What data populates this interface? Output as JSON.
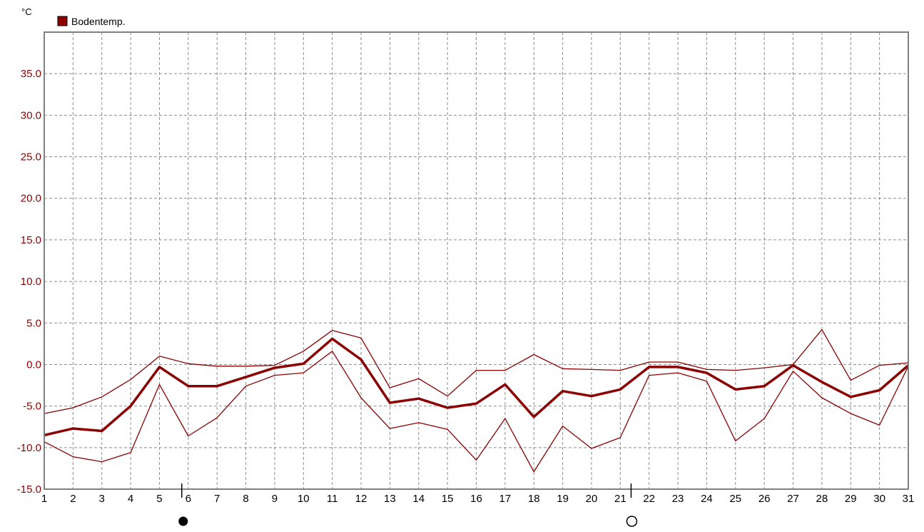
{
  "colors": {
    "series": "#8b0000",
    "axis_text": "#8b0000",
    "grid": "#8c8c8c",
    "frame": "#808080"
  },
  "chart_data": {
    "type": "line",
    "ylabel": "°C",
    "legend": {
      "entries": [
        "Bodentemp."
      ],
      "placement": "top-left"
    },
    "x": [
      1,
      2,
      3,
      4,
      5,
      6,
      7,
      8,
      9,
      10,
      11,
      12,
      13,
      14,
      15,
      16,
      17,
      18,
      19,
      20,
      21,
      22,
      23,
      24,
      25,
      26,
      27,
      28,
      29,
      30,
      31
    ],
    "x_tick_labels": [
      "1",
      "2",
      "3",
      "4",
      "5",
      "6",
      "7",
      "8",
      "9",
      "10",
      "11",
      "12",
      "13",
      "14",
      "15",
      "16",
      "17",
      "18",
      "19",
      "20",
      "21",
      "22",
      "23",
      "24",
      "25",
      "26",
      "27",
      "28",
      "29",
      "30",
      "31"
    ],
    "ylim": [
      -15,
      40
    ],
    "y_ticks": [
      -15,
      -10,
      -5,
      0,
      5,
      10,
      15,
      20,
      25,
      30,
      35
    ],
    "y_tick_labels": [
      "-15.0",
      "-10.0",
      "-5.0",
      "0.0",
      "5.0",
      "10.0",
      "15.0",
      "20.0",
      "25.0",
      "30.0",
      "35.0"
    ],
    "grid": true,
    "series": [
      {
        "name": "Bodentemp.",
        "role": "mean",
        "values": [
          -8.5,
          -7.7,
          -8.0,
          -5.0,
          -0.3,
          -2.6,
          -2.6,
          -1.5,
          -0.4,
          0.1,
          3.1,
          0.6,
          -4.6,
          -4.1,
          -5.2,
          -4.7,
          -2.4,
          -6.3,
          -3.2,
          -3.8,
          -3.0,
          -0.3,
          -0.3,
          -1.0,
          -3.0,
          -2.6,
          -0.1,
          -2.1,
          -3.9,
          -3.1,
          -0.1
        ],
        "line": "thick"
      },
      {
        "role": "max",
        "values": [
          -5.9,
          -5.2,
          -3.9,
          -1.8,
          1.0,
          0.1,
          -0.2,
          -0.2,
          -0.1,
          1.6,
          4.1,
          3.2,
          -2.8,
          -1.7,
          -3.8,
          -0.7,
          -0.7,
          1.2,
          -0.5,
          -0.6,
          -0.7,
          0.3,
          0.3,
          -0.6,
          -0.7,
          -0.4,
          0.0,
          4.2,
          -1.9,
          -0.1,
          0.2
        ],
        "line": "thin"
      },
      {
        "role": "min",
        "values": [
          -9.3,
          -11.1,
          -11.7,
          -10.6,
          -2.4,
          -8.6,
          -6.4,
          -2.6,
          -1.3,
          -1.0,
          1.6,
          -4.0,
          -7.7,
          -7.0,
          -7.8,
          -11.5,
          -6.5,
          -12.9,
          -7.4,
          -10.1,
          -8.8,
          -1.3,
          -1.0,
          -2.0,
          -9.2,
          -6.5,
          -0.8,
          -4.0,
          -5.9,
          -7.3,
          -0.2
        ],
        "line": "thin"
      }
    ],
    "moon_phases": [
      {
        "symbol": "new-moon",
        "x": 5.8
      },
      {
        "symbol": "full-moon",
        "x": 21.4
      }
    ]
  }
}
